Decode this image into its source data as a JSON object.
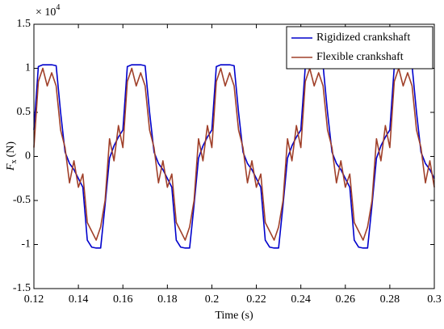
{
  "chart_data": {
    "type": "line",
    "x_label": "Time (s)",
    "y_label": {
      "symbol": "F",
      "subscript": "x",
      "unit": "(N)"
    },
    "y_multiplier": {
      "base": "× 10",
      "exponent": "4"
    },
    "xlim": [
      0.12,
      0.3
    ],
    "xticks": [
      0.12,
      0.14,
      0.16,
      0.18,
      0.2,
      0.22,
      0.24,
      0.26,
      0.28,
      0.3
    ],
    "ylim": [
      -1.5,
      1.5
    ],
    "yticks": [
      -1.5,
      -1,
      -0.5,
      0,
      0.5,
      1,
      1.5
    ],
    "legend": "upper right",
    "x": [
      0.12,
      0.122,
      0.124,
      0.126,
      0.128,
      0.13,
      0.132,
      0.134,
      0.136,
      0.138,
      0.14,
      0.142,
      0.144,
      0.146,
      0.148,
      0.15,
      0.152,
      0.154,
      0.156,
      0.158,
      0.16,
      0.162,
      0.164,
      0.166,
      0.168,
      0.17,
      0.172,
      0.174,
      0.176,
      0.178,
      0.18,
      0.182,
      0.184,
      0.186,
      0.188,
      0.19,
      0.192,
      0.194,
      0.196,
      0.198,
      0.2,
      0.202,
      0.204,
      0.206,
      0.208,
      0.21,
      0.212,
      0.214,
      0.216,
      0.218,
      0.22,
      0.222,
      0.224,
      0.226,
      0.228,
      0.23,
      0.232,
      0.234,
      0.236,
      0.238,
      0.24,
      0.242,
      0.244,
      0.246,
      0.248,
      0.25,
      0.252,
      0.254,
      0.256,
      0.258,
      0.26,
      0.262,
      0.264,
      0.266,
      0.268,
      0.27,
      0.272,
      0.274,
      0.276,
      0.278,
      0.28,
      0.282,
      0.284,
      0.286,
      0.288,
      0.29,
      0.292,
      0.294,
      0.296,
      0.298,
      0.3
    ],
    "series": [
      {
        "name": "Rigidized crankshaft",
        "color": "#0000cc",
        "values": [
          0.3,
          1.02,
          1.04,
          1.04,
          1.04,
          1.03,
          0.5,
          0.05,
          -0.08,
          -0.15,
          -0.25,
          -0.35,
          -0.95,
          -1.03,
          -1.04,
          -1.04,
          -0.55,
          -0.02,
          0.12,
          0.22,
          0.3,
          1.02,
          1.04,
          1.04,
          1.04,
          1.03,
          0.5,
          0.05,
          -0.08,
          -0.15,
          -0.25,
          -0.35,
          -0.95,
          -1.03,
          -1.04,
          -1.04,
          -0.55,
          -0.02,
          0.12,
          0.22,
          0.3,
          1.02,
          1.04,
          1.04,
          1.04,
          1.03,
          0.5,
          0.05,
          -0.08,
          -0.15,
          -0.25,
          -0.35,
          -0.95,
          -1.03,
          -1.04,
          -1.04,
          -0.55,
          -0.02,
          0.12,
          0.22,
          0.3,
          1.02,
          1.04,
          1.04,
          1.04,
          1.03,
          0.5,
          0.05,
          -0.08,
          -0.15,
          -0.25,
          -0.35,
          -0.95,
          -1.03,
          -1.04,
          -1.04,
          -0.55,
          -0.02,
          0.12,
          0.22,
          0.3,
          1.02,
          1.04,
          1.04,
          1.04,
          1.03,
          0.5,
          0.05,
          -0.08,
          -0.15,
          -0.25
        ]
      },
      {
        "name": "Flexible crankshaft",
        "color": "#a0402a",
        "values": [
          0.1,
          0.85,
          1.0,
          0.8,
          0.95,
          0.8,
          0.3,
          0.1,
          -0.3,
          -0.05,
          -0.35,
          -0.2,
          -0.75,
          -0.85,
          -0.95,
          -0.8,
          -0.5,
          0.2,
          -0.05,
          0.35,
          0.1,
          0.85,
          1.0,
          0.8,
          0.95,
          0.8,
          0.3,
          0.1,
          -0.3,
          -0.05,
          -0.35,
          -0.2,
          -0.75,
          -0.85,
          -0.95,
          -0.8,
          -0.5,
          0.2,
          -0.05,
          0.35,
          0.1,
          0.85,
          1.0,
          0.8,
          0.95,
          0.8,
          0.3,
          0.1,
          -0.3,
          -0.05,
          -0.35,
          -0.2,
          -0.75,
          -0.85,
          -0.95,
          -0.8,
          -0.5,
          0.2,
          -0.05,
          0.35,
          0.1,
          0.85,
          1.0,
          0.8,
          0.95,
          0.8,
          0.3,
          0.1,
          -0.3,
          -0.05,
          -0.35,
          -0.2,
          -0.75,
          -0.85,
          -0.95,
          -0.8,
          -0.5,
          0.2,
          -0.05,
          0.35,
          0.1,
          0.85,
          1.0,
          0.8,
          0.95,
          0.8,
          0.3,
          0.1,
          -0.3,
          -0.05,
          -0.35
        ]
      }
    ]
  }
}
